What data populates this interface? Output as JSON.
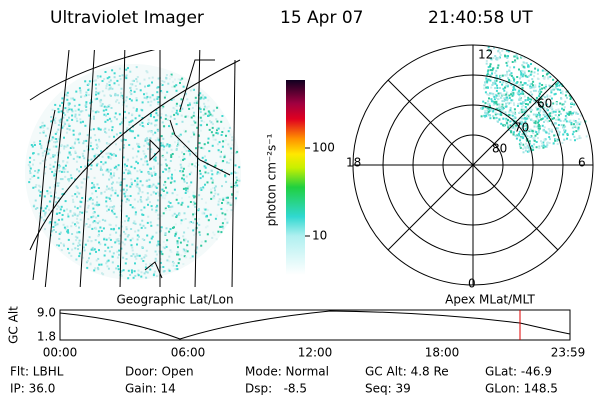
{
  "header": {
    "title": "Ultraviolet Imager",
    "date": "15 Apr 07",
    "time": "21:40:58 UT"
  },
  "colorbar": {
    "label": "photon cm⁻²s⁻¹",
    "ticks": [
      "100",
      "10"
    ]
  },
  "polar": {
    "mlt_labels": [
      "12",
      "18",
      "6",
      "0"
    ],
    "lat_labels": [
      "60",
      "70",
      "80"
    ]
  },
  "orbit": {
    "left_label": "Geographic Lat/Lon",
    "right_label": "Apex MLat/MLT",
    "y_title": "GC Alt",
    "y_labels": [
      "9.0",
      "1.8"
    ],
    "x_labels": [
      "00:00",
      "06:00",
      "12:00",
      "18:00",
      "23:59"
    ]
  },
  "info": {
    "rows": [
      [
        "Flt: LBHL",
        "Door: Open",
        "Mode: Normal",
        "GC Alt: 4.8 Re",
        "GLat: -46.9"
      ],
      [
        "IP: 36.0",
        "Gain: 14",
        "Dsp:   -8.5",
        "Seq: 39",
        "GLon: 148.5"
      ]
    ]
  }
}
